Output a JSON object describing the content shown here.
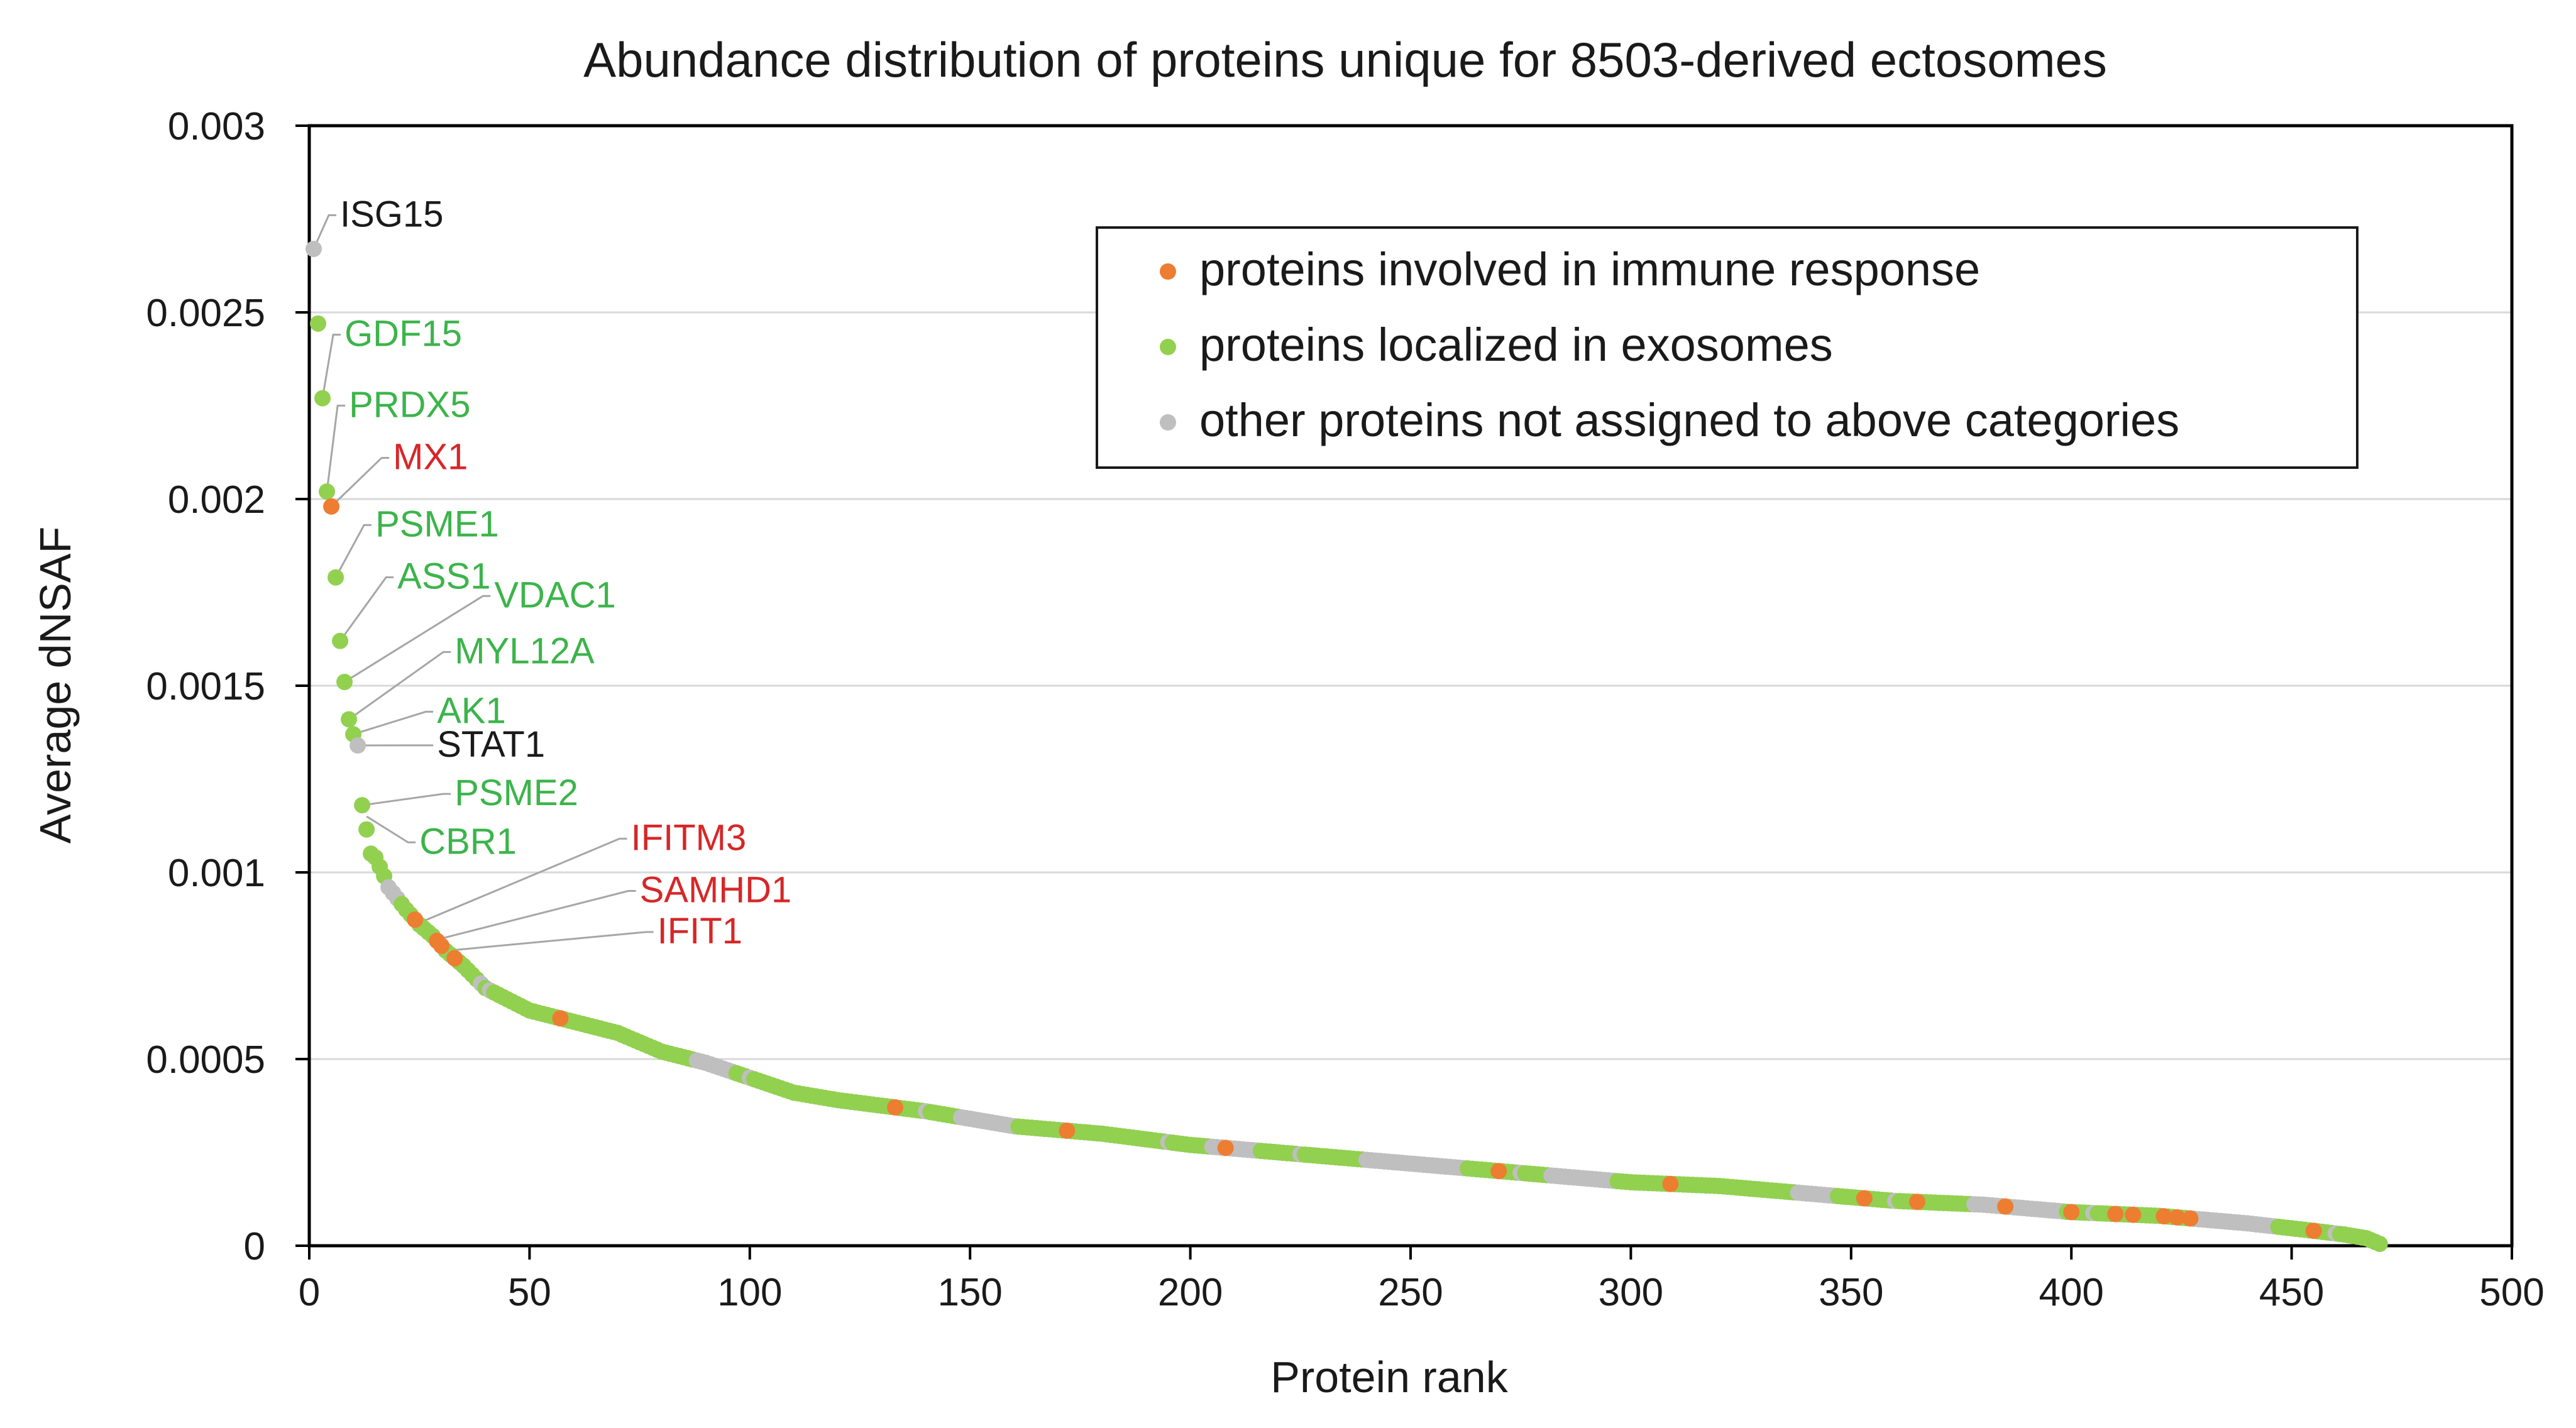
{
  "chart_data": {
    "type": "scatter",
    "title": "Abundance distribution of proteins unique for 8503-derived ectosomes",
    "xlabel": "Protein rank",
    "ylabel": "Average dNSAF",
    "xlim": [
      0,
      500
    ],
    "ylim": [
      0,
      0.003
    ],
    "x_ticks": [
      0,
      50,
      100,
      150,
      200,
      250,
      300,
      350,
      400,
      450,
      500
    ],
    "x_tick_labels": [
      "0",
      "50",
      "100",
      "150",
      "200",
      "250",
      "300",
      "350",
      "400",
      "450",
      "500"
    ],
    "y_ticks": [
      0,
      0.0005,
      0.001,
      0.0015,
      0.002,
      0.0025,
      0.003
    ],
    "y_tick_labels": [
      "0",
      "0.0005",
      "0.001",
      "0.0015",
      "0.002",
      "0.0025",
      "0.003"
    ],
    "grid": true,
    "legend_position": "top-right",
    "colors": {
      "immune": "#ED7D31",
      "exosome": "#92D050",
      "other": "#BFBFBF",
      "green_label": "#3CB44B",
      "red_label": "#D62728",
      "black_label": "#1A1A1A"
    },
    "series": [
      {
        "name": "proteins involved in immune response",
        "key": "immune"
      },
      {
        "name": "proteins localized in exosomes",
        "key": "exosome"
      },
      {
        "name": "other proteins not assigned to above categories",
        "key": "other"
      }
    ],
    "curve": {
      "description": "dense ranked dNSAF values per protein (approximate reading)",
      "ranks": [
        1,
        3,
        4,
        5,
        6,
        7,
        8,
        9,
        10,
        11,
        12,
        14,
        15,
        17,
        18,
        20,
        22,
        25,
        28,
        31,
        35,
        40,
        45,
        50,
        60,
        70,
        80,
        90,
        100,
        110,
        120,
        140,
        160,
        180,
        200,
        220,
        240,
        260,
        280,
        300,
        320,
        340,
        360,
        380,
        400,
        420,
        440,
        455,
        462,
        467,
        470
      ],
      "values": [
        0.00267,
        0.00227,
        0.00202,
        0.00198,
        0.00179,
        0.00162,
        0.00151,
        0.00141,
        0.00137,
        0.00134,
        0.00118,
        0.00105,
        0.00104,
        0.00099,
        0.00096,
        0.00093,
        0.0009,
        0.00086,
        0.00083,
        0.00079,
        0.00075,
        0.00069,
        0.00066,
        0.00063,
        0.0006,
        0.00057,
        0.00052,
        0.00049,
        0.00045,
        0.00041,
        0.00039,
        0.00036,
        0.00032,
        0.0003,
        0.00027,
        0.00025,
        0.00023,
        0.00021,
        0.00019,
        0.00017,
        0.00016,
        0.00014,
        0.00012,
        0.00011,
        9e-05,
        8e-05,
        6e-05,
        4e-05,
        3e-05,
        2e-05,
        5e-06
      ]
    },
    "immune_ranks": [
      5,
      24,
      29,
      30,
      33,
      57,
      133,
      172,
      208,
      270,
      309,
      353,
      365,
      385,
      400,
      410,
      414,
      421,
      424,
      427,
      455
    ],
    "other_ranks": [
      1,
      11,
      18,
      19,
      20,
      39,
      41,
      90,
      95,
      100,
      140,
      150,
      152,
      155,
      160,
      195,
      205,
      215,
      225,
      240,
      250,
      255,
      260,
      275,
      285,
      290,
      295,
      340,
      345,
      360,
      380,
      390,
      395,
      405,
      430,
      440,
      445,
      460
    ],
    "annotations": [
      {
        "label": "ISG15",
        "rank": 1,
        "value": 0.00267,
        "color_key": "black_label",
        "text_x": 7,
        "text_y": 0.00273
      },
      {
        "label": "GDF15",
        "rank": 3,
        "value": 0.00227,
        "color_key": "green_label",
        "text_x": 8,
        "text_y": 0.00241
      },
      {
        "label": "PRDX5",
        "rank": 4,
        "value": 0.00202,
        "color_key": "green_label",
        "text_x": 9,
        "text_y": 0.00222
      },
      {
        "label": "MX1",
        "rank": 5,
        "value": 0.00198,
        "color_key": "red_label",
        "text_x": 19,
        "text_y": 0.00208
      },
      {
        "label": "PSME1",
        "rank": 6,
        "value": 0.00179,
        "color_key": "green_label",
        "text_x": 15,
        "text_y": 0.0019
      },
      {
        "label": "ASS1",
        "rank": 7,
        "value": 0.00162,
        "color_key": "green_label",
        "text_x": 20,
        "text_y": 0.00176
      },
      {
        "label": "VDAC1",
        "rank": 8,
        "value": 0.00151,
        "color_key": "green_label",
        "text_x": 42,
        "text_y": 0.00171
      },
      {
        "label": "MYL12A",
        "rank": 9,
        "value": 0.00141,
        "color_key": "green_label",
        "text_x": 33,
        "text_y": 0.00156
      },
      {
        "label": "AK1",
        "rank": 10,
        "value": 0.00137,
        "color_key": "green_label",
        "text_x": 29,
        "text_y": 0.0014
      },
      {
        "label": "STAT1",
        "rank": 11,
        "value": 0.00134,
        "color_key": "black_label",
        "text_x": 29,
        "text_y": 0.00131
      },
      {
        "label": "PSME2",
        "rank": 12,
        "value": 0.00118,
        "color_key": "green_label",
        "text_x": 33,
        "text_y": 0.00118
      },
      {
        "label": "CBR1",
        "rank": 13,
        "value": 0.00115,
        "color_key": "green_label",
        "text_x": 25,
        "text_y": 0.00105
      },
      {
        "label": "IFITM3",
        "rank": 24,
        "value": 0.00086,
        "color_key": "red_label",
        "text_x": 73,
        "text_y": 0.00106
      },
      {
        "label": "SAMHD1",
        "rank": 29,
        "value": 0.00082,
        "color_key": "red_label",
        "text_x": 75,
        "text_y": 0.00092
      },
      {
        "label": "IFIT1",
        "rank": 31,
        "value": 0.00079,
        "color_key": "red_label",
        "text_x": 79,
        "text_y": 0.00081
      }
    ]
  }
}
